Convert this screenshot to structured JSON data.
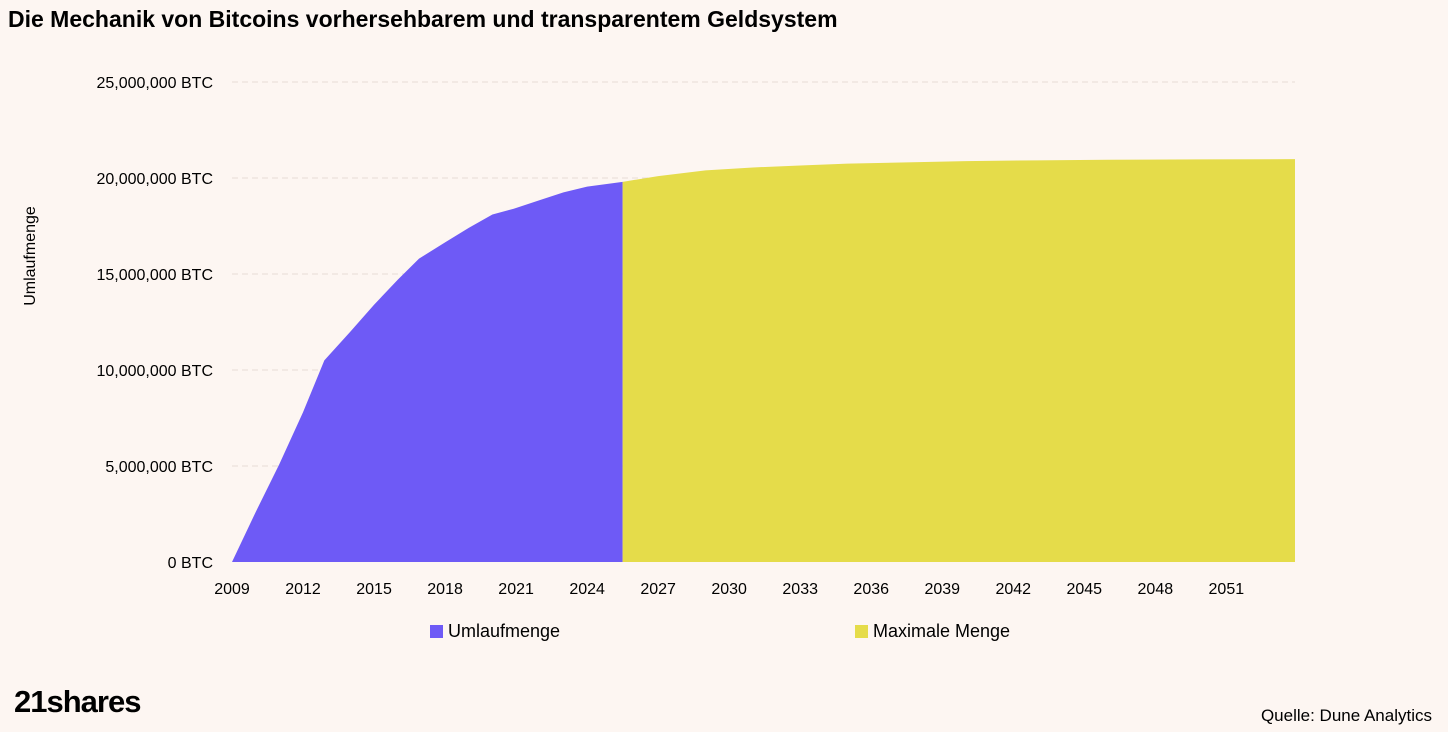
{
  "title": "Die Mechanik von Bitcoins vorhersehbarem und transparentem Geldsystem",
  "source": "Quelle: Dune Analytics",
  "logo": "21shares",
  "chart_data": {
    "type": "area",
    "title": "Die Mechanik von Bitcoins vorhersehbarem und transparentem Geldsystem",
    "ylabel": "Umlaufmenge",
    "xlabel": "",
    "ylim": [
      0,
      25000000
    ],
    "xlim": [
      2009,
      2053.9
    ],
    "y_ticks": [
      0,
      5000000,
      10000000,
      15000000,
      20000000,
      25000000
    ],
    "y_tick_labels": [
      "0 BTC",
      "5,000,000 BTC",
      "10,000,000 BTC",
      "15,000,000 BTC",
      "20,000,000 BTC",
      "25,000,000 BTC"
    ],
    "x_ticks": [
      2009,
      2012,
      2015,
      2018,
      2021,
      2024,
      2027,
      2030,
      2033,
      2036,
      2039,
      2042,
      2045,
      2048,
      2051
    ],
    "grid": true,
    "legend": "bottom",
    "colors": {
      "Umlaufmenge": "#6e5af6",
      "Maximale Menge": "#e5dc4a"
    },
    "series": [
      {
        "name": "Umlaufmenge",
        "x": [
          2009,
          2010,
          2011,
          2012,
          2012.9,
          2014,
          2015,
          2016,
          2016.9,
          2018,
          2019,
          2020,
          2020.9,
          2022,
          2023,
          2024,
          2025.5
        ],
        "values": [
          0,
          2600000,
          5100000,
          7800000,
          10500000,
          12000000,
          13400000,
          14700000,
          15800000,
          16650000,
          17400000,
          18100000,
          18400000,
          18850000,
          19250000,
          19550000,
          19800000
        ]
      },
      {
        "name": "Maximale Menge",
        "x": [
          2025.5,
          2027,
          2029,
          2031,
          2033,
          2035,
          2037,
          2040,
          2043,
          2046,
          2050,
          2053.9
        ],
        "values": [
          19800000,
          20100000,
          20400000,
          20550000,
          20650000,
          20750000,
          20800000,
          20880000,
          20920000,
          20950000,
          20970000,
          20980000
        ]
      }
    ]
  }
}
